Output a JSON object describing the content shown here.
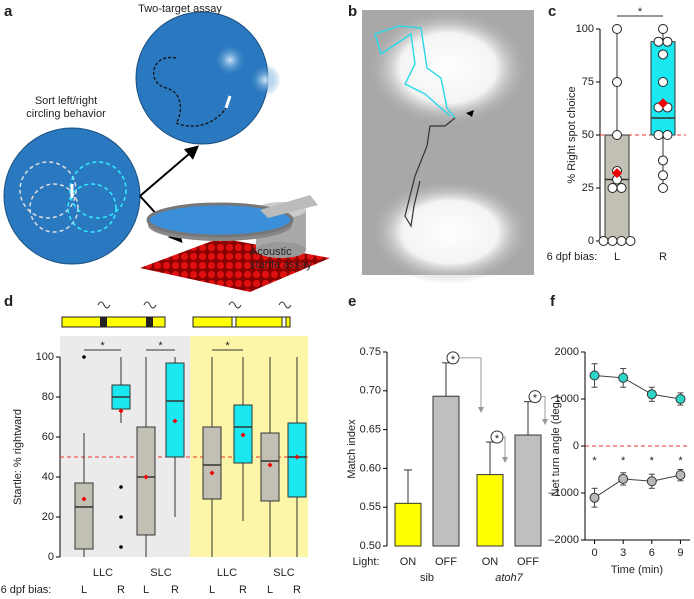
{
  "panel_labels": [
    "a",
    "b",
    "c",
    "d",
    "e",
    "f"
  ],
  "panel_a": {
    "labels": [
      "Two-target assay",
      "Sort left/right",
      "circling behavior",
      "Acoustic",
      "startle assay"
    ]
  },
  "chart_data": [
    {
      "type": "box",
      "ylabel": "% Right spot choice",
      "xlabel": "6 dpf bias:",
      "categories": [
        "L",
        "R"
      ],
      "ylim": [
        0,
        100
      ],
      "yticks": [
        0,
        25,
        50,
        75,
        100
      ],
      "reference_line": 50,
      "significance": [
        "*"
      ],
      "boxes": [
        {
          "color": "#c2c0b4",
          "whisker_low": 0,
          "q1": 0,
          "median": 29,
          "q3": 50,
          "whisker_high": 100,
          "mean": 32,
          "points": [
            0,
            0,
            0,
            0,
            25,
            25,
            29,
            33,
            50,
            75,
            100
          ]
        },
        {
          "color": "#19e8f0",
          "whisker_low": 25,
          "q1": 50,
          "median": 58,
          "q3": 94,
          "whisker_high": 100,
          "mean": 65,
          "points": [
            25,
            31,
            38,
            50,
            50,
            63,
            63,
            75,
            88,
            94,
            94,
            100
          ]
        }
      ]
    },
    {
      "type": "box",
      "ylabel": "Startle: % rightward",
      "xlabel": "6 dpf bias:",
      "categories": [
        "L",
        "R",
        "L",
        "R",
        "L",
        "R",
        "L",
        "R"
      ],
      "groups": [
        "LLC",
        "SLC",
        "LLC",
        "SLC"
      ],
      "ylim": [
        0,
        100
      ],
      "yticks": [
        0,
        20,
        40,
        60,
        80,
        100
      ],
      "reference_line": 50,
      "significance": [
        "*",
        "*",
        "*"
      ],
      "boxes": [
        {
          "color": "#c2c0b4",
          "whisker_low": 0,
          "q1": 4,
          "median": 25,
          "q3": 37,
          "whisker_high": 62,
          "mean": 29,
          "outliers": [
            100
          ]
        },
        {
          "color": "#19e8f0",
          "whisker_low": 67,
          "q1": 74,
          "median": 80,
          "q3": 86,
          "whisker_high": 100,
          "mean": 73,
          "outliers": [
            35,
            20,
            5
          ]
        },
        {
          "color": "#c2c0b4",
          "whisker_low": 0,
          "q1": 11,
          "median": 40,
          "q3": 65,
          "whisker_high": 100,
          "mean": 40
        },
        {
          "color": "#19e8f0",
          "whisker_low": 20,
          "q1": 50,
          "median": 78,
          "q3": 97,
          "whisker_high": 100,
          "mean": 68
        },
        {
          "color": "#c2c0b4",
          "whisker_low": 0,
          "q1": 29,
          "median": 46,
          "q3": 65,
          "whisker_high": 100,
          "mean": 42
        },
        {
          "color": "#19e8f0",
          "whisker_low": 18,
          "q1": 47,
          "median": 65,
          "q3": 76,
          "whisker_high": 100,
          "mean": 61
        },
        {
          "color": "#c2c0b4",
          "whisker_low": 0,
          "q1": 28,
          "median": 48,
          "q3": 62,
          "whisker_high": 100,
          "mean": 46
        },
        {
          "color": "#19e8f0",
          "whisker_low": 0,
          "q1": 30,
          "median": 50,
          "q3": 67,
          "whisker_high": 100,
          "mean": 50
        }
      ]
    },
    {
      "type": "bar",
      "ylabel": "Match index",
      "xlabel": "Light:",
      "categories": [
        "ON",
        "OFF",
        "ON",
        "OFF"
      ],
      "groups": [
        "sib",
        "atoh7"
      ],
      "values": [
        0.555,
        0.693,
        0.592,
        0.643
      ],
      "errors": [
        0.043,
        0.043,
        0.042,
        0.043
      ],
      "colors": [
        "#ffff00",
        "#bfbfbf",
        "#ffff00",
        "#bfbfbf"
      ],
      "ylim": [
        0.5,
        0.75
      ],
      "yticks": [
        {
          "value": 0.5,
          "label": "0.50"
        },
        0.55,
        {
          "value": 0.6,
          "label": "0.60"
        },
        0.65,
        {
          "value": 0.7,
          "label": "0.70"
        },
        0.75
      ],
      "significance": [
        "*",
        "*",
        "*"
      ]
    },
    {
      "type": "line",
      "ylabel": "Net turn angle (deg.)",
      "xlabel": "Time (min)",
      "x": [
        0,
        3,
        6,
        9
      ],
      "xlim": [
        -1,
        10
      ],
      "xticks": [
        0,
        3,
        6,
        9
      ],
      "ylim": [
        -2000,
        2000
      ],
      "yticks": [
        {
          "value": -2000,
          "label": "–2000"
        },
        {
          "value": -1000,
          "label": "–1000"
        },
        0,
        1000,
        2000
      ],
      "reference_line": 0,
      "significance": [
        "*",
        "*",
        "*",
        "*"
      ],
      "series": [
        {
          "color": "#2fd6c8",
          "values": [
            1500,
            1450,
            1100,
            1000
          ],
          "errors": [
            250,
            200,
            150,
            130
          ]
        },
        {
          "color": "#b8b8b8",
          "values": [
            -1100,
            -700,
            -750,
            -620
          ],
          "errors": [
            200,
            130,
            150,
            120
          ]
        }
      ]
    }
  ]
}
